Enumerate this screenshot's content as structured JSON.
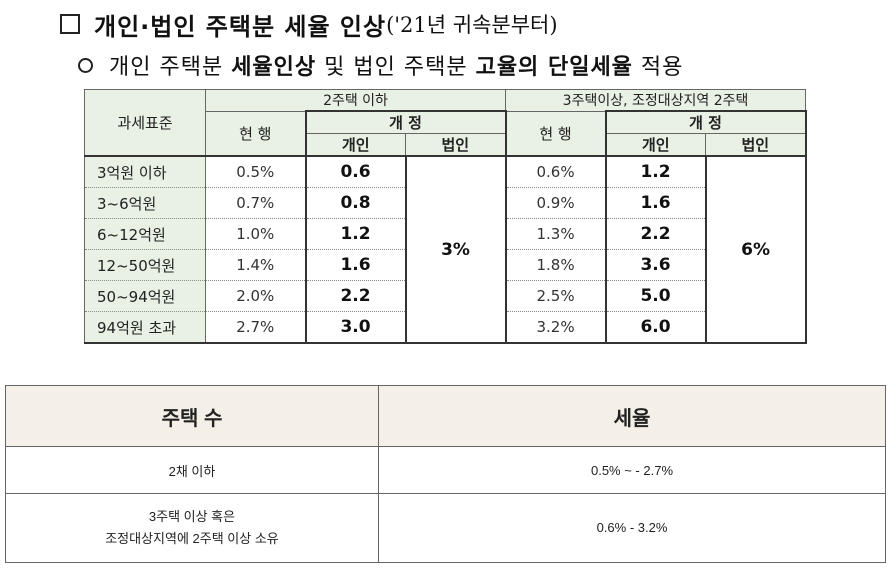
{
  "heading1": {
    "main": "개인·법인 주택분 세율 인상",
    "sub": "('21년 귀속분부터)"
  },
  "heading2": {
    "part1": "개인 주택분 ",
    "bold1": "세율인상",
    "part2": " 및 법인 주택분 ",
    "bold2": "고율의 단일세율",
    "part3": " 적용"
  },
  "tax_table": {
    "corner_label": "과세표준",
    "group1_label": "2주택 이하",
    "group2_label": "3주택이상, 조정대상지역 2주택",
    "current_label": "현 행",
    "revised_label": "개 정",
    "individual_label": "개인",
    "corporate_label": "법인",
    "corporate_rate_group1": "3%",
    "corporate_rate_group2": "6%",
    "rows": [
      {
        "bracket": "3억원 이하",
        "g1_current": "0.5%",
        "g1_individual": "0.6",
        "g2_current": "0.6%",
        "g2_individual": "1.2"
      },
      {
        "bracket": "3~6억원",
        "g1_current": "0.7%",
        "g1_individual": "0.8",
        "g2_current": "0.9%",
        "g2_individual": "1.6"
      },
      {
        "bracket": "6~12억원",
        "g1_current": "1.0%",
        "g1_individual": "1.2",
        "g2_current": "1.3%",
        "g2_individual": "2.2"
      },
      {
        "bracket": "12~50억원",
        "g1_current": "1.4%",
        "g1_individual": "1.6",
        "g2_current": "1.8%",
        "g2_individual": "3.6"
      },
      {
        "bracket": "50~94억원",
        "g1_current": "2.0%",
        "g1_individual": "2.2",
        "g2_current": "2.5%",
        "g2_individual": "5.0"
      },
      {
        "bracket": "94억원 초과",
        "g1_current": "2.7%",
        "g1_individual": "3.0",
        "g2_current": "3.2%",
        "g2_individual": "6.0"
      }
    ]
  },
  "summary_table": {
    "col1_header": "주택 수",
    "col2_header": "세율",
    "rows": [
      {
        "houses": [
          "2채 이하"
        ],
        "rate": "0.5% ~ - 2.7%"
      },
      {
        "houses": [
          "3주택 이상 혹은",
          "조정대상지역에 2주택 이상 소유"
        ],
        "rate": "0.6% - 3.2%"
      }
    ]
  }
}
